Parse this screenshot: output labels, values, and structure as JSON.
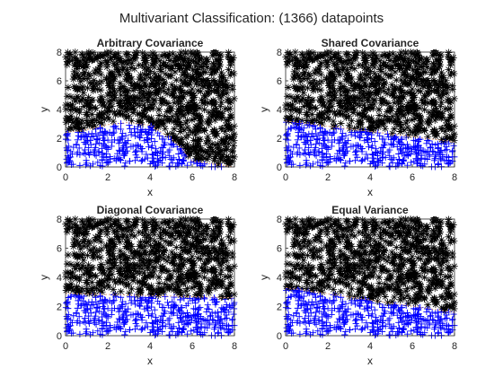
{
  "figure": {
    "title": "Multivariant Classification: (1366) datapoints",
    "n_points": 1366,
    "colors": {
      "class_1": "#000000",
      "class_2": "#0000ff",
      "boundary": "#e0a080"
    }
  },
  "chart_data": [
    {
      "type": "scatter",
      "title": "Arbitrary Covariance",
      "xlabel": "x",
      "ylabel": "y",
      "xlim": [
        0,
        8
      ],
      "ylim": [
        0,
        8
      ],
      "xticks": [
        "0",
        "2",
        "4",
        "6",
        "8"
      ],
      "yticks": [
        "0",
        "2",
        "4",
        "6",
        "8"
      ],
      "grid": false,
      "series": [
        {
          "marker": "star",
          "color": "#000000",
          "region": "above boundary"
        },
        {
          "marker": "plus",
          "color": "#0000ff",
          "region": "below boundary"
        }
      ],
      "boundary": {
        "x": [
          0,
          1,
          2,
          3,
          4,
          5,
          5.5,
          6,
          8
        ],
        "y": [
          2.4,
          2.6,
          2.95,
          3.1,
          2.9,
          2.0,
          1.3,
          0.4,
          0
        ]
      }
    },
    {
      "type": "scatter",
      "title": "Shared Covariance",
      "xlabel": "x",
      "ylabel": "y",
      "xlim": [
        0,
        8
      ],
      "ylim": [
        0,
        8
      ],
      "xticks": [
        "0",
        "2",
        "4",
        "6",
        "8"
      ],
      "yticks": [
        "0",
        "2",
        "4",
        "6",
        "8"
      ],
      "grid": false,
      "series": [
        {
          "marker": "star",
          "color": "#000000",
          "region": "above boundary"
        },
        {
          "marker": "plus",
          "color": "#0000ff",
          "region": "below boundary"
        }
      ],
      "boundary": {
        "x": [
          0,
          8
        ],
        "y": [
          3.2,
          1.75
        ]
      }
    },
    {
      "type": "scatter",
      "title": "Diagonal Covariance",
      "xlabel": "x",
      "ylabel": "y",
      "xlim": [
        0,
        8
      ],
      "ylim": [
        0,
        8
      ],
      "xticks": [
        "0",
        "2",
        "4",
        "6",
        "8"
      ],
      "yticks": [
        "0",
        "2",
        "4",
        "6",
        "8"
      ],
      "grid": false,
      "series": [
        {
          "marker": "star",
          "color": "#000000",
          "region": "above boundary"
        },
        {
          "marker": "plus",
          "color": "#0000ff",
          "region": "below boundary"
        }
      ],
      "boundary": {
        "x": [
          0,
          8
        ],
        "y": [
          2.9,
          2.6
        ]
      }
    },
    {
      "type": "scatter",
      "title": "Equal Variance",
      "xlabel": "x",
      "ylabel": "y",
      "xlim": [
        0,
        8
      ],
      "ylim": [
        0,
        8
      ],
      "xticks": [
        "0",
        "2",
        "4",
        "6",
        "8"
      ],
      "yticks": [
        "0",
        "2",
        "4",
        "6",
        "8"
      ],
      "grid": false,
      "series": [
        {
          "marker": "star",
          "color": "#000000",
          "region": "above boundary"
        },
        {
          "marker": "plus",
          "color": "#0000ff",
          "region": "below boundary"
        }
      ],
      "boundary": {
        "x": [
          0,
          8
        ],
        "y": [
          3.3,
          1.6
        ]
      }
    }
  ]
}
